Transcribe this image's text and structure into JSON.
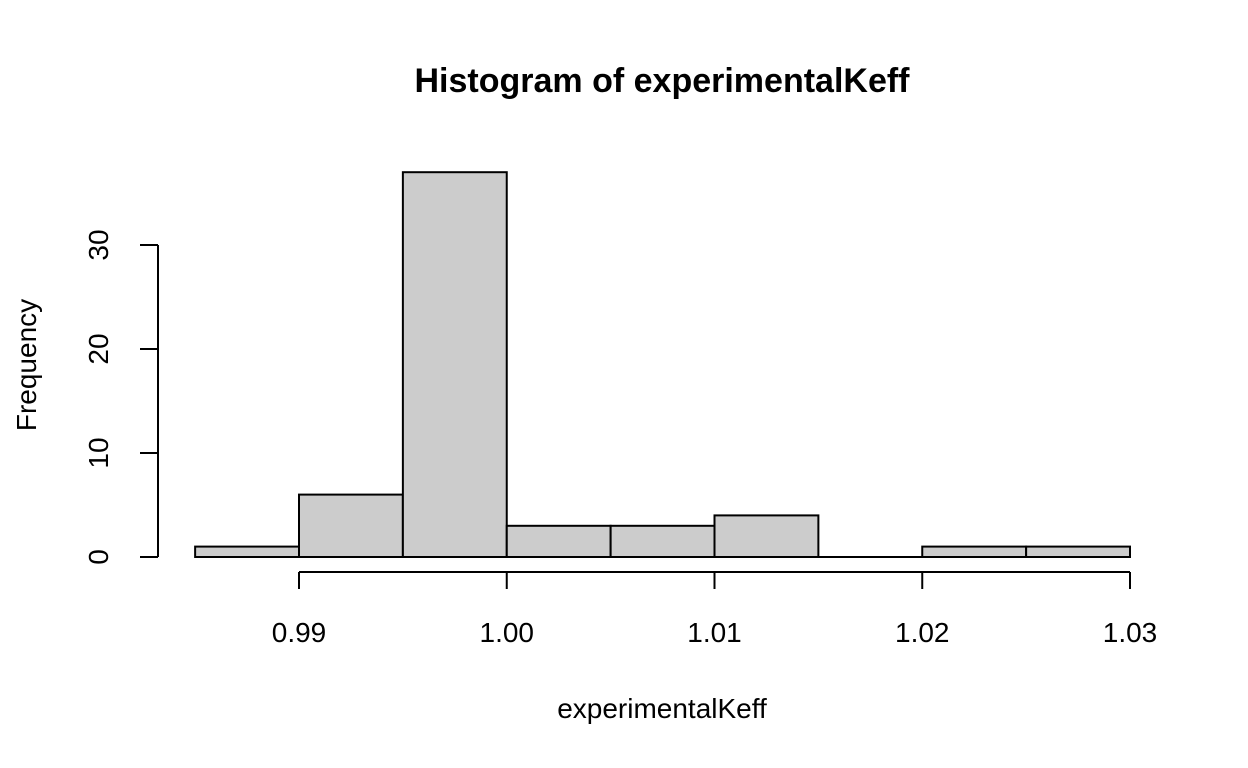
{
  "chart_data": {
    "type": "bar",
    "title": "Histogram of experimentalKeff",
    "xlabel": "experimentalKeff",
    "ylabel": "Frequency",
    "bins": [
      {
        "from": 0.985,
        "to": 0.99,
        "count": 1
      },
      {
        "from": 0.99,
        "to": 0.995,
        "count": 6
      },
      {
        "from": 0.995,
        "to": 1.0,
        "count": 37
      },
      {
        "from": 1.0,
        "to": 1.005,
        "count": 3
      },
      {
        "from": 1.005,
        "to": 1.01,
        "count": 3
      },
      {
        "from": 1.01,
        "to": 1.015,
        "count": 4
      },
      {
        "from": 1.015,
        "to": 1.02,
        "count": 0
      },
      {
        "from": 1.02,
        "to": 1.025,
        "count": 1
      },
      {
        "from": 1.025,
        "to": 1.03,
        "count": 1
      }
    ],
    "xlim": [
      0.985,
      1.03
    ],
    "ylim": [
      0,
      37
    ],
    "x_ticks": [
      0.99,
      1.0,
      1.01,
      1.02,
      1.03
    ],
    "x_tick_labels": [
      "0.99",
      "1.00",
      "1.01",
      "1.02",
      "1.03"
    ],
    "y_ticks": [
      0,
      10,
      20,
      30
    ],
    "y_tick_labels": [
      "0",
      "10",
      "20",
      "30"
    ],
    "grid": false,
    "colors": {
      "bar_fill": "#cccccc",
      "bar_stroke": "#000000"
    }
  }
}
